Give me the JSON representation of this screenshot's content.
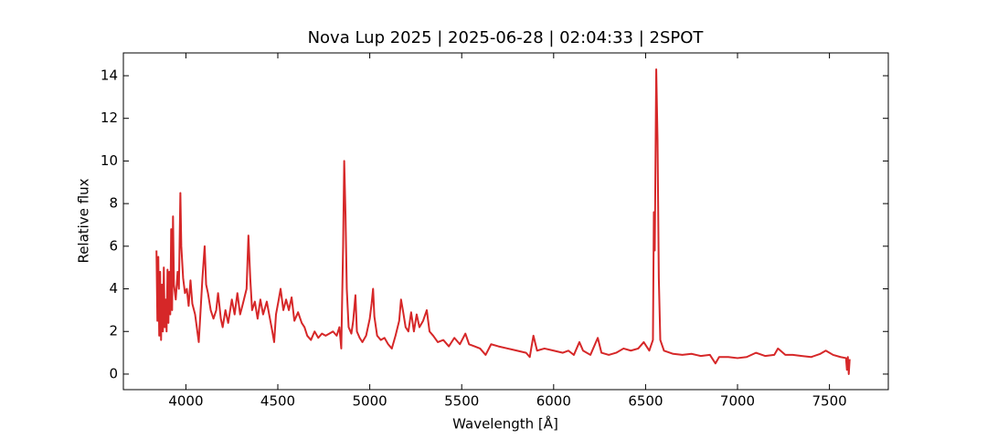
{
  "chart_data": {
    "type": "line",
    "title": "Nova Lup 2025 | 2025-06-28 | 02:04:33 | 2SPOT",
    "xlabel": "Wavelength [Å]",
    "ylabel": "Relative flux",
    "xlim": [
      3660,
      7820
    ],
    "ylim": [
      -0.73,
      15.07
    ],
    "xticks": [
      4000,
      4500,
      5000,
      5500,
      6000,
      6500,
      7000,
      7500
    ],
    "yticks": [
      0,
      2,
      4,
      6,
      8,
      10,
      12,
      14
    ],
    "grid": false,
    "series": [
      {
        "color": "#d62728",
        "x": [
          3840,
          3845,
          3850,
          3855,
          3860,
          3865,
          3870,
          3875,
          3880,
          3885,
          3890,
          3895,
          3900,
          3905,
          3910,
          3915,
          3920,
          3925,
          3930,
          3935,
          3945,
          3955,
          3962,
          3970,
          3975,
          3985,
          3995,
          4005,
          4015,
          4025,
          4035,
          4050,
          4070,
          4080,
          4090,
          4102,
          4110,
          4120,
          4135,
          4150,
          4165,
          4175,
          4190,
          4200,
          4215,
          4230,
          4250,
          4265,
          4280,
          4295,
          4310,
          4330,
          4340,
          4350,
          4360,
          4375,
          4390,
          4405,
          4420,
          4440,
          4455,
          4470,
          4480,
          4490,
          4505,
          4515,
          4530,
          4545,
          4560,
          4575,
          4590,
          4610,
          4630,
          4645,
          4660,
          4680,
          4700,
          4720,
          4740,
          4760,
          4780,
          4800,
          4820,
          4835,
          4845,
          4855,
          4861,
          4868,
          4875,
          4885,
          4900,
          4910,
          4922,
          4930,
          4945,
          4960,
          4980,
          5000,
          5010,
          5018,
          5025,
          5040,
          5060,
          5080,
          5100,
          5120,
          5140,
          5160,
          5170,
          5180,
          5195,
          5210,
          5225,
          5240,
          5255,
          5270,
          5290,
          5310,
          5325,
          5345,
          5370,
          5400,
          5430,
          5460,
          5490,
          5520,
          5540,
          5570,
          5600,
          5630,
          5660,
          5700,
          5750,
          5800,
          5850,
          5870,
          5890,
          5910,
          5950,
          6000,
          6050,
          6080,
          6110,
          6140,
          6160,
          6200,
          6240,
          6260,
          6300,
          6340,
          6380,
          6420,
          6460,
          6490,
          6520,
          6540,
          6545,
          6550,
          6558,
          6565,
          6572,
          6580,
          6600,
          6650,
          6700,
          6750,
          6800,
          6850,
          6880,
          6900,
          6950,
          7000,
          7050,
          7100,
          7150,
          7200,
          7220,
          7260,
          7300,
          7350,
          7400,
          7450,
          7480,
          7520,
          7560,
          7590,
          7595,
          7600,
          7605,
          7610
        ],
        "values": [
          5.8,
          2.5,
          5.5,
          1.8,
          4.8,
          1.6,
          4.2,
          2.0,
          5.0,
          2.2,
          3.5,
          2.0,
          4.9,
          2.4,
          4.8,
          2.8,
          6.8,
          3.0,
          7.4,
          4.2,
          3.5,
          4.8,
          4.0,
          8.5,
          6.0,
          4.5,
          3.8,
          4.0,
          3.2,
          4.4,
          3.3,
          2.8,
          1.5,
          3.0,
          4.5,
          6.0,
          4.2,
          3.8,
          3.0,
          2.6,
          3.0,
          3.8,
          2.6,
          2.2,
          3.0,
          2.4,
          3.5,
          2.8,
          3.8,
          2.8,
          3.3,
          4.0,
          6.5,
          4.5,
          3.0,
          3.4,
          2.6,
          3.5,
          2.8,
          3.4,
          2.7,
          2.0,
          1.5,
          2.8,
          3.5,
          4.0,
          3.0,
          3.5,
          3.0,
          3.6,
          2.5,
          2.9,
          2.4,
          2.2,
          1.8,
          1.6,
          2.0,
          1.7,
          1.9,
          1.8,
          1.9,
          2.0,
          1.8,
          2.2,
          1.2,
          6.0,
          10.0,
          7.5,
          4.0,
          2.2,
          1.9,
          2.5,
          3.7,
          2.0,
          1.7,
          1.5,
          1.8,
          2.6,
          3.3,
          4.0,
          2.7,
          1.8,
          1.6,
          1.7,
          1.4,
          1.2,
          1.8,
          2.5,
          3.5,
          3.0,
          2.2,
          2.0,
          2.9,
          2.0,
          2.8,
          2.2,
          2.5,
          3.0,
          2.0,
          1.8,
          1.5,
          1.6,
          1.3,
          1.7,
          1.4,
          1.9,
          1.4,
          1.3,
          1.2,
          0.9,
          1.4,
          1.3,
          1.2,
          1.1,
          1.0,
          0.8,
          1.8,
          1.1,
          1.2,
          1.1,
          1.0,
          1.1,
          0.9,
          1.5,
          1.1,
          0.9,
          1.7,
          1.0,
          0.9,
          1.0,
          1.2,
          1.1,
          1.2,
          1.5,
          1.1,
          1.6,
          7.6,
          5.8,
          14.3,
          11.0,
          4.5,
          1.6,
          1.1,
          0.95,
          0.9,
          0.95,
          0.85,
          0.9,
          0.5,
          0.8,
          0.8,
          0.75,
          0.8,
          1.0,
          0.85,
          0.9,
          1.2,
          0.9,
          0.9,
          0.85,
          0.8,
          0.95,
          1.1,
          0.9,
          0.8,
          0.75,
          0.2,
          0.8,
          0.0,
          0.7
        ]
      }
    ]
  }
}
